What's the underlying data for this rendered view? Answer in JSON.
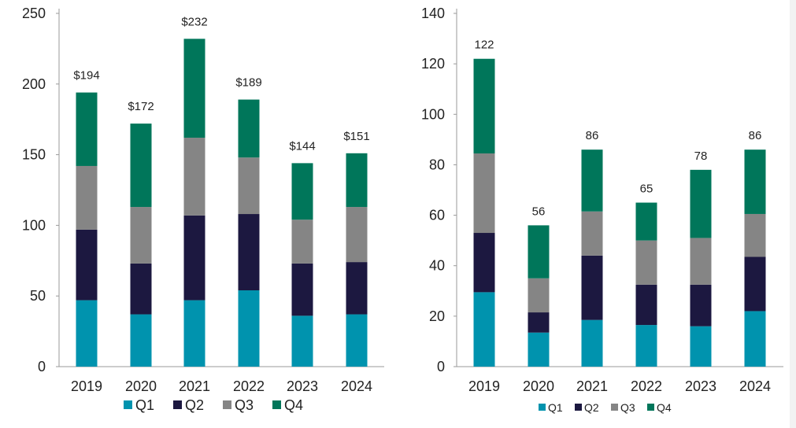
{
  "colors": {
    "Q1": "#0093ae",
    "Q2": "#1c1840",
    "Q3": "#858585",
    "Q4": "#00765a",
    "axis": "#9a9a9a",
    "text": "#222222"
  },
  "chart_data": [
    {
      "type": "bar",
      "stacked": true,
      "categories": [
        "2019",
        "2020",
        "2021",
        "2022",
        "2023",
        "2024"
      ],
      "series": [
        {
          "name": "Q1",
          "values": [
            47,
            37,
            47,
            54,
            36,
            37
          ]
        },
        {
          "name": "Q2",
          "values": [
            50,
            36,
            60,
            54,
            37,
            37
          ]
        },
        {
          "name": "Q3",
          "values": [
            45,
            40,
            55,
            40,
            31,
            39
          ]
        },
        {
          "name": "Q4",
          "values": [
            52,
            59,
            70,
            41,
            40,
            38
          ]
        }
      ],
      "totals": [
        194,
        172,
        232,
        189,
        144,
        151
      ],
      "total_labels": [
        "$194",
        "$172",
        "$232",
        "$189",
        "$144",
        "$151"
      ],
      "ylim": [
        0,
        250
      ],
      "yticks": [
        0,
        50,
        100,
        150,
        200,
        250
      ],
      "ytick_labels": [
        "0",
        "50",
        "100",
        "150",
        "200",
        "250"
      ],
      "legend_labels": [
        "Q1",
        "Q2",
        "Q3",
        "Q4"
      ],
      "legend_position": "bottom",
      "title": "",
      "xlabel": "",
      "ylabel": ""
    },
    {
      "type": "bar",
      "stacked": true,
      "categories": [
        "2019",
        "2020",
        "2021",
        "2022",
        "2023",
        "2024"
      ],
      "series": [
        {
          "name": "Q1",
          "values": [
            29.5,
            13.5,
            18.5,
            16.5,
            16,
            22
          ]
        },
        {
          "name": "Q2",
          "values": [
            23.5,
            8,
            25.5,
            16,
            16.5,
            21.5
          ]
        },
        {
          "name": "Q3",
          "values": [
            31.5,
            13.5,
            17.5,
            17.5,
            18.5,
            17
          ]
        },
        {
          "name": "Q4",
          "values": [
            37.5,
            21,
            24.5,
            15,
            27,
            25.5
          ]
        }
      ],
      "totals": [
        122,
        56,
        86,
        65,
        78,
        86
      ],
      "total_labels": [
        "122",
        "56",
        "86",
        "65",
        "78",
        "86"
      ],
      "ylim": [
        0,
        140
      ],
      "yticks": [
        0,
        20,
        40,
        60,
        80,
        100,
        120,
        140
      ],
      "ytick_labels": [
        "0",
        "20",
        "40",
        "60",
        "80",
        "100",
        "120",
        "140"
      ],
      "legend_labels": [
        "Q1",
        "Q2",
        "Q3",
        "Q4"
      ],
      "legend_position": "bottom",
      "title": "",
      "xlabel": "",
      "ylabel": ""
    }
  ]
}
